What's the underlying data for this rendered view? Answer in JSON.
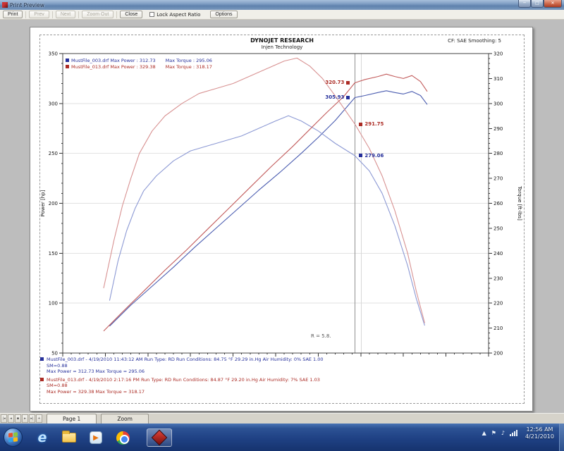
{
  "window": {
    "title": "Print Preview",
    "minimize": "0",
    "maximize": "1",
    "close": "x"
  },
  "toolbar": {
    "buttons": [
      {
        "label": "Print",
        "enabled": true
      },
      {
        "label": "Prev",
        "enabled": false
      },
      {
        "label": "Next",
        "enabled": false
      },
      {
        "label": "Zoom Out",
        "enabled": false
      },
      {
        "label": "Close",
        "enabled": true
      }
    ],
    "lock_aspect_label": "Lock Aspect Ratio",
    "options_label": "Options"
  },
  "page_header": {
    "title": "DYNOJET RESEARCH",
    "subtitle": "Injen Technology",
    "correction_text": "CF: SAE   Smoothing: 5"
  },
  "chart_data": {
    "type": "line",
    "title": "DYNOJET RESEARCH - Injen Technology",
    "x_axis": {
      "units": "RPM",
      "min": 2000,
      "max": 7000,
      "tick_labels": "none",
      "minor_step": 100,
      "major_step": 500
    },
    "y_left": {
      "label": "Power [hp]",
      "min": 50,
      "max": 350,
      "major": 50,
      "minor": 10
    },
    "y_right": {
      "label": "Torque [ft-lbs]",
      "min": 200,
      "max": 320,
      "major": 10,
      "minor": 2
    },
    "grid": "horizontal-major-only",
    "legend_position": "top-left",
    "series": [
      {
        "name": "MustFile_003.drf Power",
        "axis": "left",
        "color": "#4a5cb0",
        "points": [
          [
            2550,
            77
          ],
          [
            2800,
            98
          ],
          [
            3050,
            117
          ],
          [
            3300,
            136
          ],
          [
            3550,
            156
          ],
          [
            3800,
            175
          ],
          [
            4050,
            194
          ],
          [
            4300,
            213
          ],
          [
            4550,
            231
          ],
          [
            4800,
            250
          ],
          [
            5000,
            266
          ],
          [
            5200,
            283
          ],
          [
            5430,
            305.9
          ],
          [
            5550,
            308
          ],
          [
            5700,
            311
          ],
          [
            5800,
            312.7
          ],
          [
            5900,
            311
          ],
          [
            6000,
            309.5
          ],
          [
            6100,
            312
          ],
          [
            6200,
            308
          ],
          [
            6280,
            299
          ]
        ]
      },
      {
        "name": "MustFile_003.drf Torque",
        "axis": "right",
        "color": "#8c99d4",
        "points": [
          [
            2550,
            221
          ],
          [
            2650,
            237
          ],
          [
            2750,
            249
          ],
          [
            2850,
            258
          ],
          [
            2950,
            265
          ],
          [
            3100,
            271
          ],
          [
            3300,
            277
          ],
          [
            3500,
            281
          ],
          [
            3700,
            283
          ],
          [
            3900,
            285
          ],
          [
            4100,
            287
          ],
          [
            4300,
            290
          ],
          [
            4500,
            293
          ],
          [
            4650,
            295.1
          ],
          [
            4800,
            293
          ],
          [
            5000,
            289
          ],
          [
            5200,
            284
          ],
          [
            5430,
            279.1
          ],
          [
            5600,
            273
          ],
          [
            5750,
            264
          ],
          [
            5900,
            251
          ],
          [
            6050,
            235
          ],
          [
            6150,
            222
          ],
          [
            6250,
            211
          ]
        ]
      },
      {
        "name": "MustFile_013.drf Power",
        "axis": "left",
        "color": "#c25b5b",
        "points": [
          [
            2480,
            72
          ],
          [
            2700,
            91
          ],
          [
            2950,
            112
          ],
          [
            3200,
            133
          ],
          [
            3450,
            153
          ],
          [
            3700,
            174
          ],
          [
            3950,
            195
          ],
          [
            4200,
            216
          ],
          [
            4450,
            237
          ],
          [
            4700,
            257
          ],
          [
            4900,
            274
          ],
          [
            5100,
            291
          ],
          [
            5300,
            307
          ],
          [
            5430,
            320.7
          ],
          [
            5550,
            324
          ],
          [
            5700,
            327
          ],
          [
            5800,
            329.4
          ],
          [
            5900,
            327
          ],
          [
            6000,
            325
          ],
          [
            6100,
            328
          ],
          [
            6200,
            322
          ],
          [
            6280,
            312
          ]
        ]
      },
      {
        "name": "MustFile_013.drf Torque",
        "axis": "right",
        "color": "#d89292",
        "points": [
          [
            2480,
            226
          ],
          [
            2600,
            245
          ],
          [
            2700,
            259
          ],
          [
            2800,
            270
          ],
          [
            2900,
            280
          ],
          [
            3050,
            289
          ],
          [
            3200,
            295
          ],
          [
            3400,
            300
          ],
          [
            3600,
            304
          ],
          [
            3800,
            306
          ],
          [
            4000,
            308
          ],
          [
            4200,
            311
          ],
          [
            4400,
            314
          ],
          [
            4600,
            317
          ],
          [
            4750,
            318.2
          ],
          [
            4900,
            315
          ],
          [
            5050,
            310
          ],
          [
            5200,
            303
          ],
          [
            5430,
            291.8
          ],
          [
            5600,
            282
          ],
          [
            5750,
            271
          ],
          [
            5900,
            257
          ],
          [
            6050,
            240
          ],
          [
            6150,
            225
          ],
          [
            6250,
            212
          ]
        ]
      }
    ]
  },
  "legend": {
    "rows": [
      {
        "file_and_power": "MustFile_003.drf Max Power : 312.73",
        "torque": "Max Torque : 295.06",
        "color": "#26309b"
      },
      {
        "file_and_power": "MustFile_013.drf Max Power : 329.38",
        "torque": "Max Torque : 318.17",
        "color": "#ab2b24"
      }
    ]
  },
  "cursor": {
    "rpm": 5430,
    "power_labels": [
      {
        "value": "320.73",
        "hp": 320.73,
        "color": "#ab2b24"
      },
      {
        "value": "305.93",
        "hp": 305.93,
        "color": "#26309b"
      }
    ],
    "torque_labels": [
      {
        "value": "291.75",
        "tq": 291.75,
        "color": "#ab2b24"
      },
      {
        "value": "279.06",
        "tq": 279.06,
        "color": "#26309b"
      }
    ],
    "ratio_text": "R = 5.8."
  },
  "run_info": {
    "blue": {
      "line1": "MustFile_003.drf - 4/19/2010 11:43:12 AM  Run Type: RD  Run Conditions: 84.75 °F 29.29 in.Hg Air  Humidity: 0%  SAE 1.00",
      "line2": "SM=0.88",
      "line3": "Max Power = 312.73  Max Torque = 295.06"
    },
    "red": {
      "line1": "MustFile_013.drf - 4/19/2010 2:17:16 PM  Run Type: RD  Run Conditions: 84.87 °F 29.20 in.Hg Air  Humidity: 7%  SAE 1.03",
      "line2": "SM=0.88",
      "line3": "Max Power = 329.38  Max Torque = 318.17"
    }
  },
  "statusbar": {
    "nav": [
      "|◂",
      "◂",
      "▪",
      "▸",
      "▸|",
      "+"
    ],
    "tabs": [
      {
        "label": "Page 1"
      },
      {
        "label": "Zoom"
      }
    ]
  },
  "taskbar": {
    "clock_time": "12:56 AM",
    "clock_date": "4/21/2010",
    "icons": [
      "start-orb",
      "internet-explorer",
      "windows-explorer",
      "media-player",
      "chrome",
      "dyno-app"
    ]
  }
}
